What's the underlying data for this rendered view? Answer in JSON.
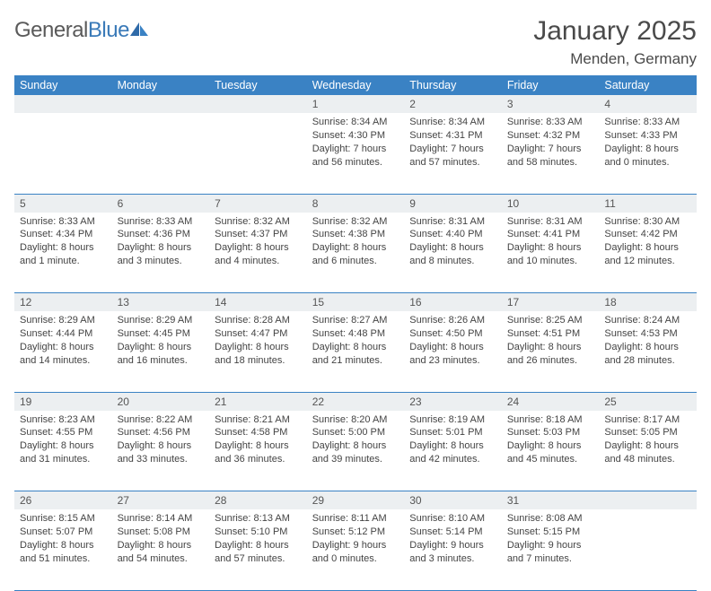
{
  "logo": {
    "word1": "General",
    "word2": "Blue"
  },
  "title": "January 2025",
  "location": "Menden, Germany",
  "colors": {
    "header_bg": "#3a82c4",
    "header_fg": "#ffffff",
    "daynum_bg": "#eceff1",
    "rule": "#3a82c4",
    "text": "#444444",
    "logo_gray": "#5a5a5a",
    "logo_blue": "#3a7ab8"
  },
  "weekdays": [
    "Sunday",
    "Monday",
    "Tuesday",
    "Wednesday",
    "Thursday",
    "Friday",
    "Saturday"
  ],
  "weeks": [
    [
      {
        "n": "",
        "t": ""
      },
      {
        "n": "",
        "t": ""
      },
      {
        "n": "",
        "t": ""
      },
      {
        "n": "1",
        "t": "Sunrise: 8:34 AM\nSunset: 4:30 PM\nDaylight: 7 hours and 56 minutes."
      },
      {
        "n": "2",
        "t": "Sunrise: 8:34 AM\nSunset: 4:31 PM\nDaylight: 7 hours and 57 minutes."
      },
      {
        "n": "3",
        "t": "Sunrise: 8:33 AM\nSunset: 4:32 PM\nDaylight: 7 hours and 58 minutes."
      },
      {
        "n": "4",
        "t": "Sunrise: 8:33 AM\nSunset: 4:33 PM\nDaylight: 8 hours and 0 minutes."
      }
    ],
    [
      {
        "n": "5",
        "t": "Sunrise: 8:33 AM\nSunset: 4:34 PM\nDaylight: 8 hours and 1 minute."
      },
      {
        "n": "6",
        "t": "Sunrise: 8:33 AM\nSunset: 4:36 PM\nDaylight: 8 hours and 3 minutes."
      },
      {
        "n": "7",
        "t": "Sunrise: 8:32 AM\nSunset: 4:37 PM\nDaylight: 8 hours and 4 minutes."
      },
      {
        "n": "8",
        "t": "Sunrise: 8:32 AM\nSunset: 4:38 PM\nDaylight: 8 hours and 6 minutes."
      },
      {
        "n": "9",
        "t": "Sunrise: 8:31 AM\nSunset: 4:40 PM\nDaylight: 8 hours and 8 minutes."
      },
      {
        "n": "10",
        "t": "Sunrise: 8:31 AM\nSunset: 4:41 PM\nDaylight: 8 hours and 10 minutes."
      },
      {
        "n": "11",
        "t": "Sunrise: 8:30 AM\nSunset: 4:42 PM\nDaylight: 8 hours and 12 minutes."
      }
    ],
    [
      {
        "n": "12",
        "t": "Sunrise: 8:29 AM\nSunset: 4:44 PM\nDaylight: 8 hours and 14 minutes."
      },
      {
        "n": "13",
        "t": "Sunrise: 8:29 AM\nSunset: 4:45 PM\nDaylight: 8 hours and 16 minutes."
      },
      {
        "n": "14",
        "t": "Sunrise: 8:28 AM\nSunset: 4:47 PM\nDaylight: 8 hours and 18 minutes."
      },
      {
        "n": "15",
        "t": "Sunrise: 8:27 AM\nSunset: 4:48 PM\nDaylight: 8 hours and 21 minutes."
      },
      {
        "n": "16",
        "t": "Sunrise: 8:26 AM\nSunset: 4:50 PM\nDaylight: 8 hours and 23 minutes."
      },
      {
        "n": "17",
        "t": "Sunrise: 8:25 AM\nSunset: 4:51 PM\nDaylight: 8 hours and 26 minutes."
      },
      {
        "n": "18",
        "t": "Sunrise: 8:24 AM\nSunset: 4:53 PM\nDaylight: 8 hours and 28 minutes."
      }
    ],
    [
      {
        "n": "19",
        "t": "Sunrise: 8:23 AM\nSunset: 4:55 PM\nDaylight: 8 hours and 31 minutes."
      },
      {
        "n": "20",
        "t": "Sunrise: 8:22 AM\nSunset: 4:56 PM\nDaylight: 8 hours and 33 minutes."
      },
      {
        "n": "21",
        "t": "Sunrise: 8:21 AM\nSunset: 4:58 PM\nDaylight: 8 hours and 36 minutes."
      },
      {
        "n": "22",
        "t": "Sunrise: 8:20 AM\nSunset: 5:00 PM\nDaylight: 8 hours and 39 minutes."
      },
      {
        "n": "23",
        "t": "Sunrise: 8:19 AM\nSunset: 5:01 PM\nDaylight: 8 hours and 42 minutes."
      },
      {
        "n": "24",
        "t": "Sunrise: 8:18 AM\nSunset: 5:03 PM\nDaylight: 8 hours and 45 minutes."
      },
      {
        "n": "25",
        "t": "Sunrise: 8:17 AM\nSunset: 5:05 PM\nDaylight: 8 hours and 48 minutes."
      }
    ],
    [
      {
        "n": "26",
        "t": "Sunrise: 8:15 AM\nSunset: 5:07 PM\nDaylight: 8 hours and 51 minutes."
      },
      {
        "n": "27",
        "t": "Sunrise: 8:14 AM\nSunset: 5:08 PM\nDaylight: 8 hours and 54 minutes."
      },
      {
        "n": "28",
        "t": "Sunrise: 8:13 AM\nSunset: 5:10 PM\nDaylight: 8 hours and 57 minutes."
      },
      {
        "n": "29",
        "t": "Sunrise: 8:11 AM\nSunset: 5:12 PM\nDaylight: 9 hours and 0 minutes."
      },
      {
        "n": "30",
        "t": "Sunrise: 8:10 AM\nSunset: 5:14 PM\nDaylight: 9 hours and 3 minutes."
      },
      {
        "n": "31",
        "t": "Sunrise: 8:08 AM\nSunset: 5:15 PM\nDaylight: 9 hours and 7 minutes."
      },
      {
        "n": "",
        "t": ""
      }
    ]
  ]
}
